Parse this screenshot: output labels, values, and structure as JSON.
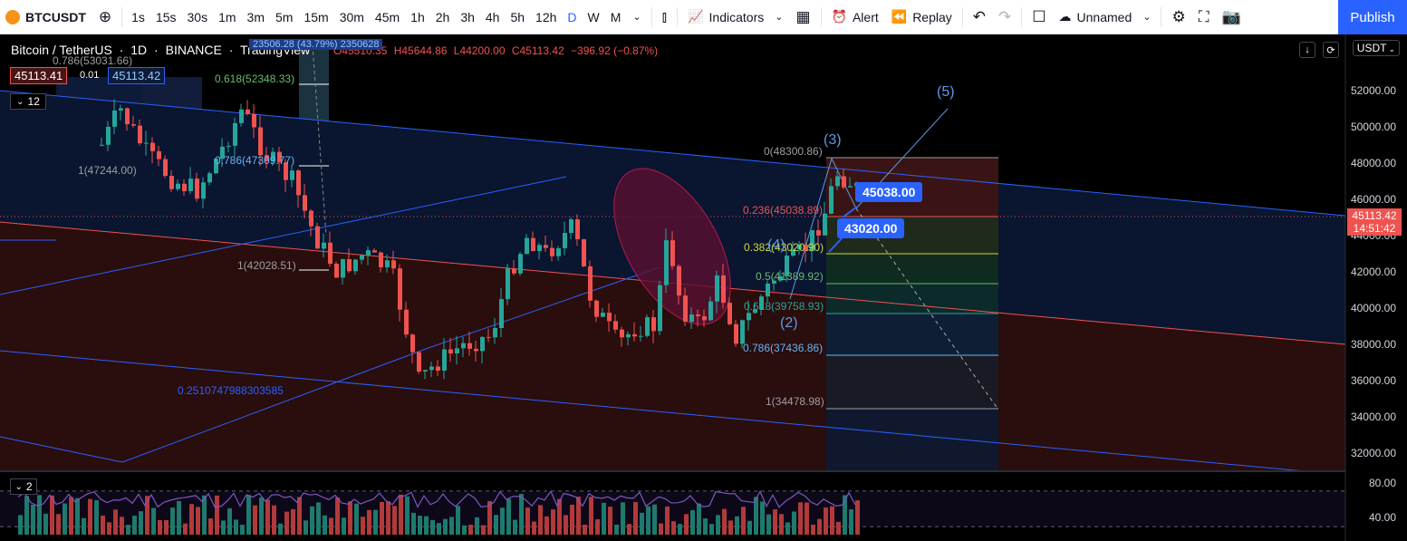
{
  "toolbar": {
    "symbol": "BTCUSDT",
    "intervals": [
      "1s",
      "15s",
      "30s",
      "1m",
      "3m",
      "5m",
      "15m",
      "30m",
      "45m",
      "1h",
      "2h",
      "3h",
      "4h",
      "5h",
      "12h",
      "D",
      "W",
      "M"
    ],
    "active_interval": "D",
    "indicators_label": "Indicators",
    "alert_label": "Alert",
    "replay_label": "Replay",
    "layout_name": "Unnamed",
    "publish_label": "Publish"
  },
  "legend": {
    "pair": "Bitcoin / TetherUS",
    "interval": "1D",
    "exchange": "BINANCE",
    "source": "TradingView",
    "open": "O45510.35",
    "high": "H45644.86",
    "low": "L44200.00",
    "close": "C45113.42",
    "change": "−396.92 (−0.87%)",
    "sell_price": "45113.41",
    "spread": "0.01",
    "buy_price": "45113.42",
    "lower_pane_count": "2",
    "upper_pane_count": "12",
    "overlap_label": "23506.28 (43.79%) 2350628"
  },
  "currency": "USDT",
  "price_axis": [
    "52000.00",
    "50000.00",
    "48000.00",
    "46000.00",
    "44000.00",
    "42000.00",
    "40000.00",
    "38000.00",
    "36000.00",
    "34000.00",
    "32000.00"
  ],
  "osc_axis": [
    "80.00",
    "40.00"
  ],
  "last_price": {
    "price": "45113.42",
    "countdown": "14:51:42"
  },
  "fib_left": {
    "levels": [
      "0.786(53031.66)",
      "0.618(52348.33)",
      "0.786(47309.77)",
      "1(47244.00)",
      "1(42028.51)"
    ],
    "float_value": "0.2510747988303585"
  },
  "fib_right": {
    "levels": [
      "0(48300.86)",
      "0.236(45038.89)",
      "0.382(43020.90)",
      "0.5(41389.92)",
      "0.618(39758.93)",
      "0.786(37436.86)",
      "1(34478.98)"
    ]
  },
  "waves": [
    "(3)",
    "(5)",
    "(4)",
    "(2)"
  ],
  "tags": {
    "upper": "45038.00",
    "lower": "43020.00"
  },
  "colors": {
    "up": "#26a69a",
    "down": "#ef5350",
    "accent": "#2962ff",
    "channel": "#2962ff"
  }
}
